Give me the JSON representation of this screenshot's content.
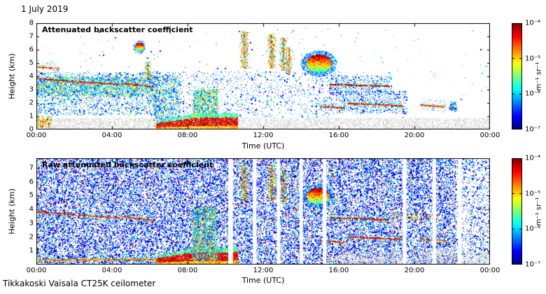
{
  "page": {
    "date_label": "1 July 2019",
    "footer": "Tikkakoski Vaisala CT25K ceilometer"
  },
  "axes": {
    "x_label": "Time (UTC)",
    "y_label": "Height (km)",
    "x_ticks": [
      "00:00",
      "04:00",
      "08:00",
      "12:00",
      "16:00",
      "20:00",
      "00:00"
    ]
  },
  "colorbar": {
    "label": "m⁻¹ sr⁻¹",
    "ticks": [
      "10⁻⁴",
      "10⁻⁵",
      "10⁻⁶",
      "10⁻⁷"
    ]
  },
  "chart_data": [
    {
      "type": "heatmap",
      "title": "Attenuated backscatter coefficient",
      "xlabel": "Time (UTC)",
      "ylabel": "Height (km)",
      "xlim_hours": [
        0,
        24
      ],
      "ylim_km": [
        0,
        8
      ],
      "yticks": [
        0,
        1,
        2,
        3,
        4,
        5,
        6,
        7,
        8
      ],
      "colormap": "jet",
      "clim": [
        "1e-7",
        "1e-4"
      ],
      "features": [
        {
          "kind": "speckle",
          "t": [
            0,
            6.5
          ],
          "h": [
            1.1,
            4.3
          ],
          "n": 2400,
          "v": [
            0.12,
            0.6
          ],
          "pow": 1.8
        },
        {
          "kind": "speckle",
          "t": [
            0,
            6.2
          ],
          "h": [
            2.5,
            3.95
          ],
          "n": 2400,
          "v": [
            0.18,
            0.75
          ],
          "pow": 1.4
        },
        {
          "kind": "speckle",
          "t": [
            6,
            16
          ],
          "h": [
            0.9,
            4.4
          ],
          "n": 1400,
          "v": [
            0.1,
            0.5
          ],
          "pow": 2
        },
        {
          "kind": "speckle",
          "t": [
            16,
            19.6
          ],
          "h": [
            1.2,
            2.9
          ],
          "n": 650,
          "v": [
            0.1,
            0.5
          ],
          "pow": 2
        },
        {
          "kind": "speckle",
          "t": [
            15.5,
            18.8
          ],
          "h": [
            2.6,
            4.1
          ],
          "n": 420,
          "v": [
            0.1,
            0.45
          ],
          "pow": 2
        },
        {
          "kind": "speckle",
          "t": [
            0,
            24
          ],
          "h": [
            0.9,
            7.6
          ],
          "n": 240,
          "v": [
            0.1,
            0.5
          ],
          "pow": 2
        },
        {
          "kind": "speckle",
          "t": [
            6.2,
            7.6
          ],
          "h": [
            0.2,
            4.1
          ],
          "n": 1000,
          "v": [
            0.15,
            0.7
          ],
          "pow": 1.7
        },
        {
          "kind": "speckle",
          "t": [
            8.3,
            9.6
          ],
          "h": [
            0.3,
            3.0
          ],
          "n": 1500,
          "v": [
            0.2,
            0.8
          ],
          "pow": 1.3
        },
        {
          "kind": "speckle",
          "t": [
            21.85,
            22.25
          ],
          "h": [
            1.4,
            2.1
          ],
          "n": 110,
          "v": [
            0.15,
            0.6
          ],
          "pow": 1.5
        },
        {
          "kind": "gray",
          "t": [
            0,
            24
          ],
          "h": [
            0,
            0.85
          ],
          "n": 5200
        },
        {
          "kind": "speckle",
          "t": [
            0,
            0.8
          ],
          "h": [
            0.15,
            1.05
          ],
          "n": 220,
          "v": [
            0.4,
            0.9
          ],
          "pow": 1
        },
        {
          "kind": "layer",
          "t": [
            0,
            2.1
          ],
          "h": [
            3.85,
            3.6
          ],
          "v": 0.93,
          "fuzz": 3
        },
        {
          "kind": "layer",
          "t": [
            2.2,
            4.4
          ],
          "h": [
            3.6,
            3.4
          ],
          "v": 0.9,
          "fuzz": 3
        },
        {
          "kind": "layer",
          "t": [
            4.55,
            6.15
          ],
          "h": [
            3.5,
            3.2
          ],
          "v": 0.88,
          "fuzz": 3
        },
        {
          "kind": "layer",
          "t": [
            0,
            1.15
          ],
          "h": [
            4.72,
            4.6
          ],
          "v": 0.85,
          "fuzz": 2
        },
        {
          "kind": "blob",
          "c": [
            5.45,
            6.2
          ],
          "r": [
            0.22,
            0.35
          ],
          "n": 240,
          "v": 0.9
        },
        {
          "kind": "column",
          "t": [
            5.8,
            6.0
          ],
          "h": [
            3.9,
            5.1
          ],
          "n": 200,
          "v": [
            0.3,
            0.9
          ]
        },
        {
          "kind": "column",
          "t": [
            10.85,
            11.15
          ],
          "h": [
            4.6,
            7.35
          ],
          "n": 480,
          "v": [
            0.35,
            0.97
          ]
        },
        {
          "kind": "column",
          "t": [
            12.3,
            12.6
          ],
          "h": [
            4.6,
            7.2
          ],
          "n": 440,
          "v": [
            0.35,
            0.97
          ]
        },
        {
          "kind": "column",
          "t": [
            12.95,
            13.2
          ],
          "h": [
            4.4,
            6.9
          ],
          "n": 340,
          "v": [
            0.3,
            0.95
          ]
        },
        {
          "kind": "column",
          "t": [
            13.25,
            13.45
          ],
          "h": [
            4.3,
            6.2
          ],
          "n": 240,
          "v": [
            0.3,
            0.9
          ]
        },
        {
          "kind": "dots",
          "pts": [
            [
              10.72,
              7.38,
              0.9
            ],
            [
              4.15,
              6.9,
              0.85
            ],
            [
              7.05,
              7.3,
              0.8
            ],
            [
              3.3,
              5.6,
              0.75
            ],
            [
              2.6,
              5.2,
              0.6
            ],
            [
              9.0,
              4.9,
              0.65
            ],
            [
              16.9,
              6.9,
              0.5
            ],
            [
              18.3,
              5.1,
              0.4
            ],
            [
              21.0,
              4.2,
              0.45
            ]
          ]
        },
        {
          "kind": "blob",
          "c": [
            14.95,
            4.95
          ],
          "r": [
            0.66,
            0.68
          ],
          "n": 2300,
          "v": 0.95
        },
        {
          "kind": "layer",
          "t": [
            15.0,
            16.3
          ],
          "h": [
            1.75,
            1.62
          ],
          "v": 0.9,
          "fuzz": 2
        },
        {
          "kind": "layer",
          "t": [
            15.55,
            18.65
          ],
          "h": [
            3.4,
            3.27
          ],
          "v": 0.96,
          "fuzz": 3
        },
        {
          "kind": "layer",
          "t": [
            16.5,
            19.35
          ],
          "h": [
            1.97,
            1.8
          ],
          "v": 0.88,
          "fuzz": 3
        },
        {
          "kind": "layer",
          "t": [
            20.3,
            21.65
          ],
          "h": [
            1.86,
            1.74
          ],
          "v": 0.85,
          "fuzz": 3
        },
        {
          "kind": "bl",
          "t": [
            6.35,
            10.65
          ],
          "tops": [
            0.65,
            0.95,
            1.25,
            1.2,
            1.3
          ],
          "v": 0.9
        }
      ]
    },
    {
      "type": "heatmap",
      "title": "Raw attenuated backscatter coefficient",
      "xlabel": "Time (UTC)",
      "ylabel": "Height (km)",
      "xlim_hours": [
        0,
        24
      ],
      "ylim_km": [
        0,
        7.7
      ],
      "yticks": [
        1,
        2,
        3,
        4,
        5,
        6,
        7
      ],
      "colormap": "jet",
      "clim": [
        "1e-7",
        "1e-4"
      ],
      "features": [
        {
          "kind": "speckle",
          "t": [
            0,
            22.2
          ],
          "h": [
            0,
            7.7
          ],
          "n": 26000,
          "v": [
            0.08,
            0.98
          ],
          "pow": 5
        },
        {
          "kind": "speckle",
          "t": [
            0,
            22.2
          ],
          "h": [
            0,
            7.7
          ],
          "n": 12000,
          "v": [
            0.08,
            0.5
          ],
          "pow": 2.5
        },
        {
          "kind": "speckle",
          "t": [
            22.2,
            24
          ],
          "h": [
            0,
            7.7
          ],
          "n": 1300,
          "v": [
            0.08,
            0.6
          ],
          "pow": 3
        },
        {
          "kind": "gray",
          "t": [
            16,
            24
          ],
          "h": [
            0,
            0.9
          ],
          "n": 2300
        },
        {
          "kind": "layer",
          "t": [
            0,
            6.4
          ],
          "h": [
            0.34,
            0.42
          ],
          "v": 0.75,
          "fuzz": 2
        },
        {
          "kind": "layer",
          "t": [
            0,
            2.1
          ],
          "h": [
            3.85,
            3.6
          ],
          "v": 0.88,
          "fuzz": 2
        },
        {
          "kind": "layer",
          "t": [
            2.2,
            4.4
          ],
          "h": [
            3.6,
            3.4
          ],
          "v": 0.85,
          "fuzz": 2
        },
        {
          "kind": "layer",
          "t": [
            4.55,
            6.15
          ],
          "h": [
            3.5,
            3.2
          ],
          "v": 0.84,
          "fuzz": 2
        },
        {
          "kind": "bl",
          "t": [
            6.35,
            10.65
          ],
          "tops": [
            0.65,
            0.95,
            1.25,
            1.2,
            1.3
          ],
          "v": 0.9
        },
        {
          "kind": "speckle",
          "t": [
            8.25,
            9.55
          ],
          "h": [
            0.3,
            4.2
          ],
          "n": 2200,
          "v": [
            0.2,
            0.85
          ],
          "pow": 1.6
        },
        {
          "kind": "column",
          "t": [
            10.85,
            11.15
          ],
          "h": [
            4.6,
            7.3
          ],
          "n": 380,
          "v": [
            0.35,
            0.95
          ]
        },
        {
          "kind": "column",
          "t": [
            12.3,
            12.6
          ],
          "h": [
            4.6,
            7.2
          ],
          "n": 340,
          "v": [
            0.35,
            0.95
          ]
        },
        {
          "kind": "column",
          "t": [
            12.95,
            13.2
          ],
          "h": [
            4.4,
            6.9
          ],
          "n": 260,
          "v": [
            0.3,
            0.9
          ]
        },
        {
          "kind": "blob",
          "c": [
            14.9,
            4.95
          ],
          "r": [
            0.6,
            0.6
          ],
          "n": 1300,
          "v": 0.9
        },
        {
          "kind": "layer",
          "t": [
            15.0,
            16.3
          ],
          "h": [
            1.72,
            1.62
          ],
          "v": 0.85,
          "fuzz": 2
        },
        {
          "kind": "layer",
          "t": [
            15.55,
            18.65
          ],
          "h": [
            3.4,
            3.27
          ],
          "v": 0.95,
          "fuzz": 2
        },
        {
          "kind": "layer",
          "t": [
            16.5,
            19.45
          ],
          "h": [
            2.0,
            1.85
          ],
          "v": 0.88,
          "fuzz": 2
        },
        {
          "kind": "layer",
          "t": [
            20.3,
            21.65
          ],
          "h": [
            1.86,
            1.74
          ],
          "v": 0.8,
          "fuzz": 2
        },
        {
          "kind": "speckle",
          "t": [
            18.8,
            21.3
          ],
          "h": [
            3.3,
            3.7
          ],
          "n": 130,
          "v": [
            0.45,
            0.9
          ],
          "pow": 1
        },
        {
          "kind": "gap",
          "t": [
            10.15,
            10.4
          ]
        },
        {
          "kind": "gap",
          "t": [
            11.45,
            11.65
          ]
        },
        {
          "kind": "gap",
          "t": [
            12.72,
            12.9
          ]
        },
        {
          "kind": "gap",
          "t": [
            13.92,
            14.1
          ]
        },
        {
          "kind": "gap",
          "t": [
            15.15,
            15.35
          ]
        },
        {
          "kind": "gap",
          "t": [
            19.38,
            19.58
          ]
        },
        {
          "kind": "gap",
          "t": [
            20.95,
            21.15
          ]
        },
        {
          "kind": "gap",
          "t": [
            22.3,
            22.5
          ]
        }
      ]
    }
  ]
}
